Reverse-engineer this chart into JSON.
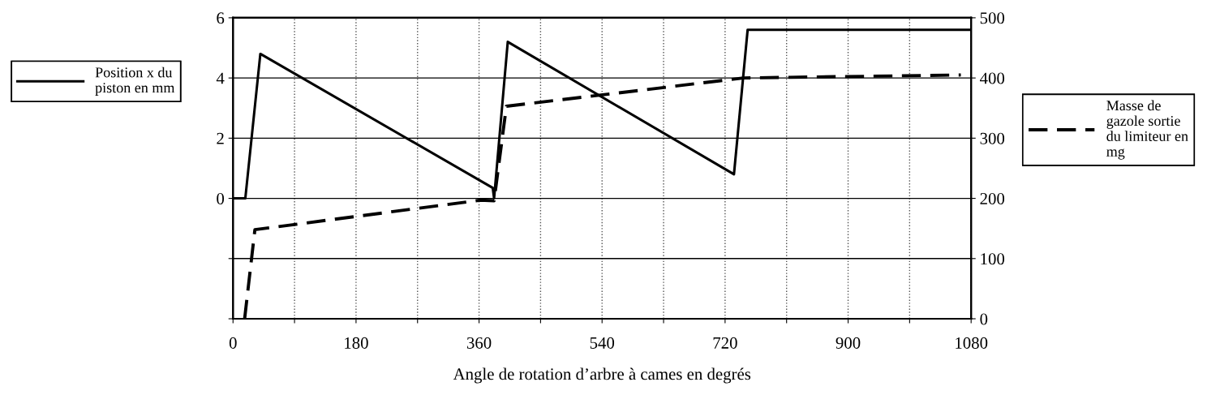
{
  "chart_data": {
    "type": "line",
    "xlabel": "Angle de rotation d’arbre à cames en degrés",
    "xlim": [
      0,
      1080
    ],
    "xticks": [
      0,
      {
        "value": 90,
        "label": null
      },
      180,
      {
        "value": 270,
        "label": null
      },
      360,
      {
        "value": 450,
        "label": null
      },
      540,
      {
        "value": 630,
        "label": null
      },
      720,
      {
        "value": 810,
        "label": null
      },
      900,
      {
        "value": 990,
        "label": null
      },
      1080
    ],
    "ylim": [
      -4,
      6
    ],
    "yticks": [
      {
        "value": -4,
        "label": null
      },
      {
        "value": -2,
        "label": null
      },
      0,
      2,
      4,
      6
    ],
    "y2lim": [
      0,
      500
    ],
    "y2ticks": [
      0,
      100,
      200,
      300,
      400,
      500
    ],
    "grid": true,
    "legend": "left",
    "series": [
      {
        "name": "Position x du\npiston en mm",
        "color": "#000000",
        "line_style": "solid",
        "x": [
          0,
          18,
          40,
          380,
          382,
          402,
          733,
          753,
          1080
        ],
        "values": [
          0,
          0,
          4.8,
          0.35,
          0,
          5.2,
          0.8,
          5.6,
          5.6
        ]
      },
      {
        "name": "Masse de\ngazole sortie\ndu limiteur en\nmg",
        "color": "#000000",
        "line_style": "dashed",
        "axis": "y2",
        "x": [
          17,
          32,
          362,
          382,
          400,
          747,
          1065
        ],
        "values": [
          0,
          148,
          197,
          196,
          353,
          400,
          405
        ]
      }
    ]
  }
}
